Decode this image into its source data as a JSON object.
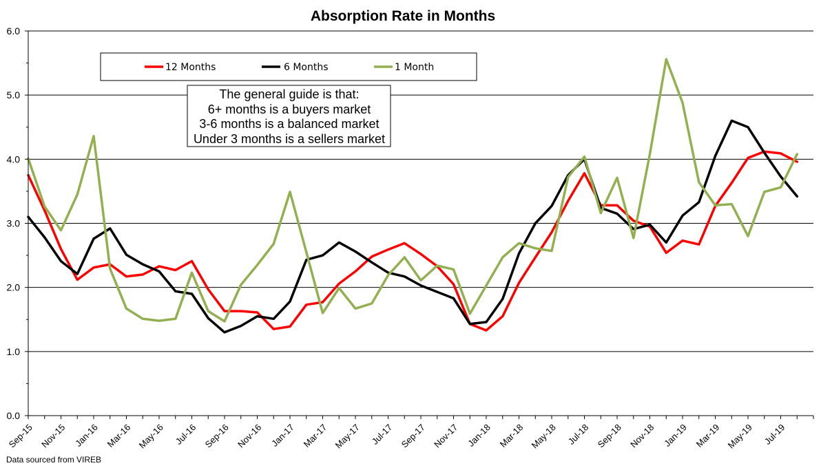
{
  "chart_data": {
    "type": "line",
    "title": "Absorption Rate in Months",
    "xlabel": "",
    "ylabel": "",
    "ylim": [
      0,
      6
    ],
    "yticks": [
      "0.0",
      "1.0",
      "2.0",
      "3.0",
      "4.0",
      "5.0",
      "6.0"
    ],
    "grid": "horizontal",
    "legend_position": "top-left",
    "x": [
      "Sep-15",
      "Oct-15",
      "Nov-15",
      "Dec-15",
      "Jan-16",
      "Feb-16",
      "Mar-16",
      "Apr-16",
      "May-16",
      "Jun-16",
      "Jul-16",
      "Aug-16",
      "Sep-16",
      "Oct-16",
      "Nov-16",
      "Dec-16",
      "Jan-17",
      "Feb-17",
      "Mar-17",
      "Apr-17",
      "May-17",
      "Jun-17",
      "Jul-17",
      "Aug-17",
      "Sep-17",
      "Oct-17",
      "Nov-17",
      "Dec-17",
      "Jan-18",
      "Feb-18",
      "Mar-18",
      "Apr-18",
      "May-18",
      "Jun-18",
      "Jul-18",
      "Aug-18",
      "Sep-18",
      "Oct-18",
      "Nov-18",
      "Dec-18",
      "Jan-19",
      "Feb-19",
      "Mar-19",
      "Apr-19",
      "May-19",
      "Jun-19",
      "Jul-19",
      "Aug-19"
    ],
    "xtick_labels": [
      "Sep-15",
      "Nov-15",
      "Jan-16",
      "Mar-16",
      "May-16",
      "Jul-16",
      "Sep-16",
      "Nov-16",
      "Jan-17",
      "Mar-17",
      "May-17",
      "Jul-17",
      "Sep-17",
      "Nov-17",
      "Jan-18",
      "Mar-18",
      "May-18",
      "Jul-18",
      "Sep-18",
      "Nov-18",
      "Jan-19",
      "Mar-19",
      "May-19",
      "Jul-19"
    ],
    "series": [
      {
        "name": "12 Months",
        "color": "#ff0000",
        "values": [
          3.75,
          3.2,
          2.6,
          2.12,
          2.31,
          2.36,
          2.17,
          2.2,
          2.33,
          2.27,
          2.41,
          1.97,
          1.63,
          1.63,
          1.61,
          1.35,
          1.39,
          1.73,
          1.77,
          2.06,
          2.25,
          2.48,
          2.59,
          2.69,
          2.52,
          2.33,
          2.05,
          1.43,
          1.33,
          1.55,
          2.07,
          2.47,
          2.86,
          3.35,
          3.78,
          3.28,
          3.28,
          3.04,
          2.95,
          2.54,
          2.73,
          2.67,
          3.27,
          3.63,
          4.02,
          4.12,
          4.09,
          3.96
        ]
      },
      {
        "name": "6 Months",
        "color": "#000000",
        "values": [
          3.1,
          2.78,
          2.41,
          2.21,
          2.76,
          2.92,
          2.51,
          2.36,
          2.25,
          1.94,
          1.9,
          1.52,
          1.3,
          1.4,
          1.55,
          1.51,
          1.78,
          2.43,
          2.5,
          2.7,
          2.56,
          2.39,
          2.23,
          2.17,
          2.03,
          1.93,
          1.83,
          1.43,
          1.46,
          1.82,
          2.53,
          3.0,
          3.27,
          3.75,
          4.0,
          3.24,
          3.15,
          2.91,
          2.98,
          2.7,
          3.12,
          3.33,
          4.05,
          4.6,
          4.5,
          4.1,
          3.73,
          3.42
        ]
      },
      {
        "name": "1 Month",
        "color": "#92b050",
        "values": [
          4.01,
          3.26,
          2.89,
          3.45,
          4.36,
          2.29,
          1.67,
          1.51,
          1.48,
          1.51,
          2.23,
          1.63,
          1.47,
          2.04,
          2.35,
          2.68,
          3.49,
          2.55,
          1.6,
          1.99,
          1.67,
          1.75,
          2.19,
          2.47,
          2.11,
          2.34,
          2.28,
          1.59,
          2.03,
          2.47,
          2.69,
          2.61,
          2.57,
          3.72,
          4.04,
          3.16,
          3.71,
          2.77,
          4.08,
          5.56,
          4.88,
          3.64,
          3.28,
          3.3,
          2.8,
          3.49,
          3.56,
          4.08
        ]
      }
    ],
    "annotation": [
      "The general guide is that:",
      "6+ months is a buyers market",
      "3-6 months is a balanced market",
      "Under 3 months is a sellers market"
    ],
    "source_note": "Data sourced from VIREB"
  }
}
